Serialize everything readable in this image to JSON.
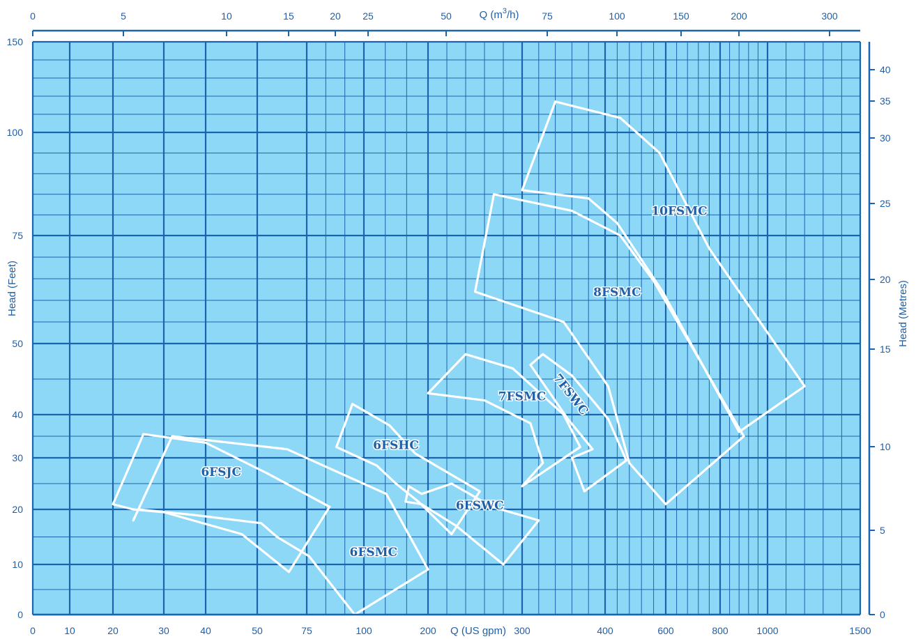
{
  "chart_data": {
    "type": "area",
    "title": "",
    "colors": {
      "plot_background": "#8dd8f7",
      "grid": "#1a64ad",
      "region_outline": "#ffffff",
      "label": "#1f5fa8"
    },
    "grid": true,
    "legend": "none",
    "axes": {
      "x_bottom": {
        "label": "Q (US gpm)",
        "range": [
          0,
          1500
        ],
        "ticks": [
          0,
          10,
          20,
          30,
          40,
          50,
          75,
          100,
          200,
          300,
          400,
          600,
          800,
          1000,
          1500
        ]
      },
      "x_top": {
        "label": "Q (m",
        "label_sup": "3",
        "label_tail": "/h)",
        "ticks": [
          0,
          5,
          10,
          15,
          20,
          25,
          50,
          75,
          100,
          150,
          200,
          300
        ]
      },
      "y_left": {
        "label": "Head (Feet)",
        "range": [
          0,
          150
        ],
        "ticks": [
          0,
          10,
          20,
          30,
          40,
          50,
          75,
          100,
          150
        ]
      },
      "y_right": {
        "label": "Head (Metres)",
        "ticks": [
          0,
          5,
          10,
          15,
          20,
          25,
          30,
          35,
          40
        ]
      }
    },
    "regions": [
      {
        "name": "6FSJC",
        "label_at": [
          43,
          26.5
        ],
        "outline": [
          [
            20,
            21
          ],
          [
            26,
            35.5
          ],
          [
            40,
            33.5
          ],
          [
            55,
            27
          ],
          [
            85,
            20.5
          ],
          [
            66,
            8.5
          ],
          [
            47,
            15.5
          ],
          [
            30,
            19.5
          ],
          [
            24,
            20
          ]
        ]
      },
      {
        "name": "6FSMC",
        "label_at": [
          115,
          11.5
        ],
        "outline": [
          [
            24,
            18
          ],
          [
            25,
            20
          ],
          [
            37,
            19
          ],
          [
            52,
            17.5
          ],
          [
            60,
            15
          ],
          [
            76,
            11.5
          ],
          [
            96,
            0
          ],
          [
            200,
            9
          ],
          [
            135,
            23
          ],
          [
            65,
            32
          ],
          [
            32,
            35
          ]
        ]
      },
      {
        "name": "6FSHC",
        "label_at": [
          150,
          32
        ],
        "outline": [
          [
            88,
            32.5
          ],
          [
            95,
            41.5
          ],
          [
            140,
            37.5
          ],
          [
            180,
            31
          ],
          [
            255,
            23.5
          ],
          [
            225,
            15.5
          ],
          [
            185,
            21.5
          ],
          [
            150,
            25
          ],
          [
            120,
            28.5
          ]
        ]
      },
      {
        "name": "6FSWC",
        "label_at": [
          255,
          20
        ],
        "outline": [
          [
            165,
            21.5
          ],
          [
            170,
            24.5
          ],
          [
            190,
            23
          ],
          [
            225,
            25
          ],
          [
            268,
            20.5
          ],
          [
            320,
            18
          ],
          [
            280,
            10
          ],
          [
            230,
            17
          ],
          [
            190,
            21
          ]
        ]
      },
      {
        "name": "7FSMC",
        "label_at": [
          300,
          42
        ],
        "outline": [
          [
            200,
            43
          ],
          [
            240,
            48.5
          ],
          [
            290,
            46.5
          ],
          [
            350,
            40
          ],
          [
            370,
            32.5
          ],
          [
            300,
            24.5
          ],
          [
            325,
            29
          ],
          [
            310,
            38
          ],
          [
            260,
            42
          ]
        ]
      },
      {
        "name": "7FSWC",
        "label_at": [
          355,
          42.5
        ],
        "outline": [
          [
            310,
            47
          ],
          [
            325,
            48.5
          ],
          [
            360,
            45.5
          ],
          [
            410,
            39
          ],
          [
            470,
            29.5
          ],
          [
            375,
            23.5
          ],
          [
            360,
            30
          ],
          [
            385,
            32
          ],
          [
            355,
            39
          ]
        ]
      },
      {
        "name": "8FSMC",
        "label_at": [
          440,
          61
        ],
        "outline": [
          [
            250,
            62
          ],
          [
            270,
            85
          ],
          [
            360,
            81
          ],
          [
            450,
            75
          ],
          [
            560,
            64.5
          ],
          [
            900,
            35
          ],
          [
            600,
            21
          ],
          [
            480,
            29
          ],
          [
            410,
            44
          ],
          [
            350,
            55
          ]
        ]
      },
      {
        "name": "10FSMC",
        "label_at": [
          650,
          80
        ],
        "outline": [
          [
            300,
            86
          ],
          [
            340,
            117
          ],
          [
            450,
            108
          ],
          [
            580,
            95
          ],
          [
            760,
            72
          ],
          [
            1200,
            44
          ],
          [
            880,
            36
          ],
          [
            590,
            62
          ],
          [
            440,
            78
          ],
          [
            380,
            84
          ]
        ]
      }
    ]
  }
}
